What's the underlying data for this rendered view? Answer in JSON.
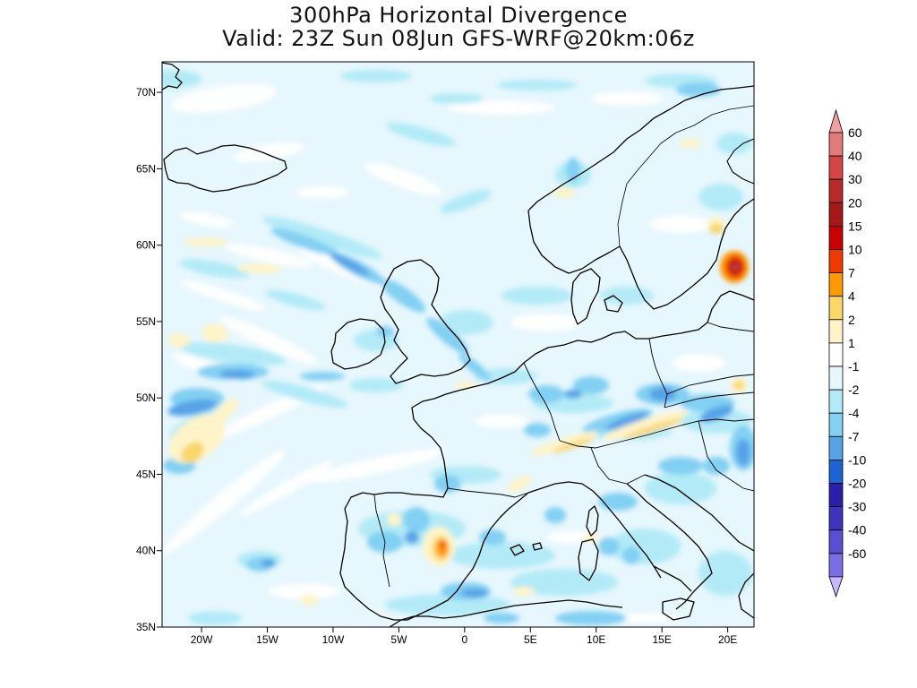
{
  "title": {
    "line1": "300hPa Horizontal Divergence",
    "line2": "Valid: 23Z Sun 08Jun GFS-WRF@20km:06z"
  },
  "map": {
    "lon_range": [
      -23,
      22
    ],
    "lat_range": [
      35,
      72
    ],
    "lon_ticks": [
      {
        "value": -20,
        "label": "20W"
      },
      {
        "value": -15,
        "label": "15W"
      },
      {
        "value": -10,
        "label": "10W"
      },
      {
        "value": -5,
        "label": "5W"
      },
      {
        "value": 0,
        "label": "0"
      },
      {
        "value": 5,
        "label": "5E"
      },
      {
        "value": 10,
        "label": "10E"
      },
      {
        "value": 15,
        "label": "15E"
      },
      {
        "value": 20,
        "label": "20E"
      }
    ],
    "lat_ticks": [
      {
        "value": 70,
        "label": "70N"
      },
      {
        "value": 65,
        "label": "65N"
      },
      {
        "value": 60,
        "label": "60N"
      },
      {
        "value": 55,
        "label": "55N"
      },
      {
        "value": 50,
        "label": "50N"
      },
      {
        "value": 45,
        "label": "45N"
      },
      {
        "value": 40,
        "label": "40N"
      },
      {
        "value": 35,
        "label": "35N"
      }
    ],
    "background_color": "#e6f7fd",
    "coastline_color": "#000000"
  },
  "colorbar": {
    "levels": [
      {
        "label": "60",
        "color": "#e27a7a"
      },
      {
        "label": "40",
        "color": "#d44646"
      },
      {
        "label": "30",
        "color": "#b72a2a"
      },
      {
        "label": "20",
        "color": "#a51818"
      },
      {
        "label": "15",
        "color": "#c80000"
      },
      {
        "label": "10",
        "color": "#ee3a00"
      },
      {
        "label": "7",
        "color": "#ff9a00"
      },
      {
        "label": "4",
        "color": "#fbd66a"
      },
      {
        "label": "2",
        "color": "#fff4c8"
      },
      {
        "label": "1",
        "color": "#ffffff"
      },
      {
        "label": "-1",
        "color": "#e6f7fd"
      },
      {
        "label": "-2",
        "color": "#b2ebf7"
      },
      {
        "label": "-4",
        "color": "#82d0f3"
      },
      {
        "label": "-7",
        "color": "#56a3e8"
      },
      {
        "label": "-10",
        "color": "#1b64d1"
      },
      {
        "label": "-20",
        "color": "#2b1ea8"
      },
      {
        "label": "-30",
        "color": "#3f33bc"
      },
      {
        "label": "-40",
        "color": "#5a4ed2"
      },
      {
        "label": "-60",
        "color": "#7a6ee6"
      }
    ],
    "top_arrow_color": "#f0a0a0",
    "bottom_arrow_color": "#c6b8ff"
  }
}
